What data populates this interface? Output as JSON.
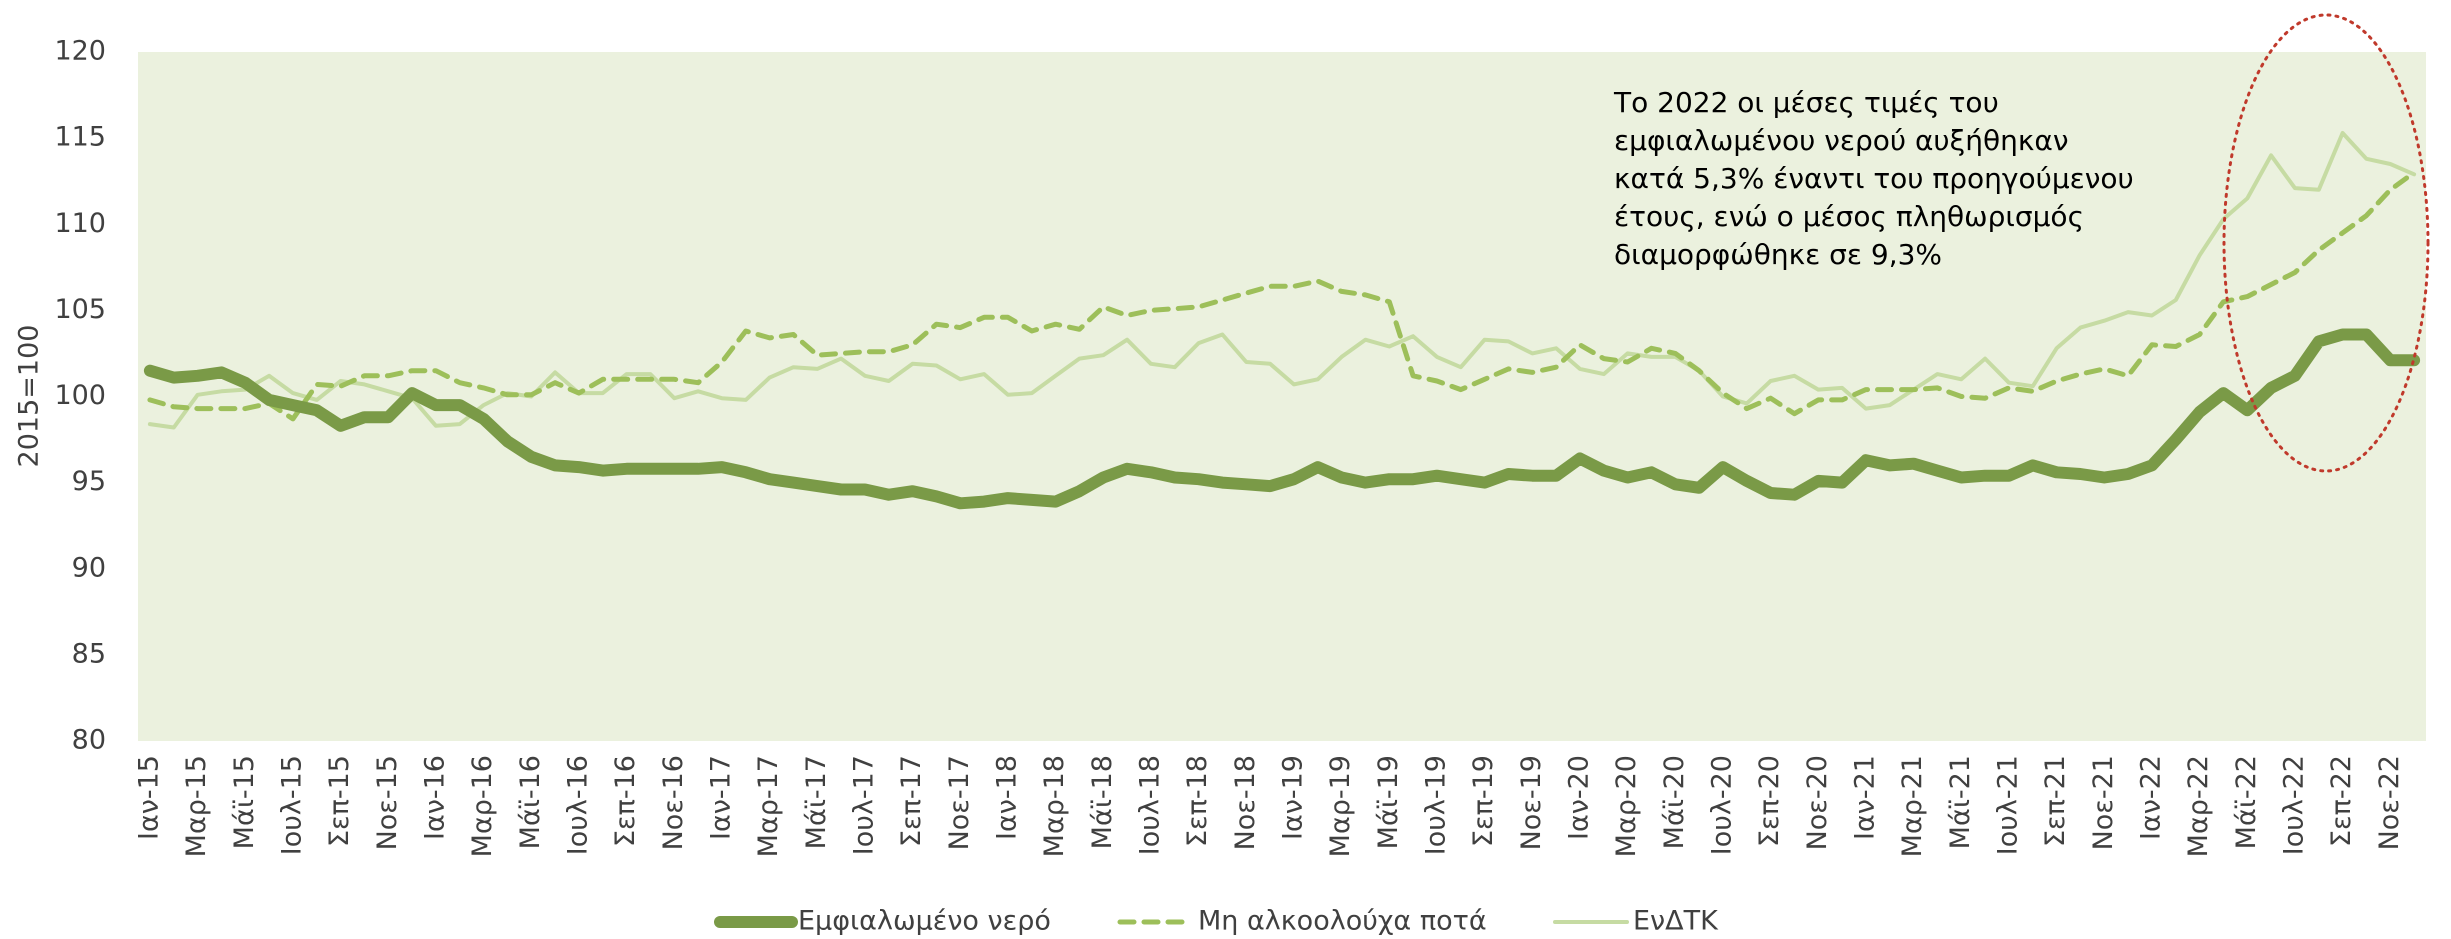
{
  "chart_data": {
    "type": "line",
    "ylabel": "2015=100",
    "categories": [
      "Ιαν-15",
      null,
      "Μαρ-15",
      null,
      "Μάϊ-15",
      null,
      "Ιουλ-15",
      null,
      "Σεπ-15",
      null,
      "Νοε-15",
      null,
      "Ιαν-16",
      null,
      "Μαρ-16",
      null,
      "Μάϊ-16",
      null,
      "Ιουλ-16",
      null,
      "Σεπ-16",
      null,
      "Νοε-16",
      null,
      "Ιαν-17",
      null,
      "Μαρ-17",
      null,
      "Μάϊ-17",
      null,
      "Ιουλ-17",
      null,
      "Σεπ-17",
      null,
      "Νοε-17",
      null,
      "Ιαν-18",
      null,
      "Μαρ-18",
      null,
      "Μάϊ-18",
      null,
      "Ιουλ-18",
      null,
      "Σεπ-18",
      null,
      "Νοε-18",
      null,
      "Ιαν-19",
      null,
      "Μαρ-19",
      null,
      "Μάϊ-19",
      null,
      "Ιουλ-19",
      null,
      "Σεπ-19",
      null,
      "Νοε-19",
      null,
      "Ιαν-20",
      null,
      "Μαρ-20",
      null,
      "Μάϊ-20",
      null,
      "Ιουλ-20",
      null,
      "Σεπ-20",
      null,
      "Νοε-20",
      null,
      "Ιαν-21",
      null,
      "Μαρ-21",
      null,
      "Μάϊ-21",
      null,
      "Ιουλ-21",
      null,
      "Σεπ-21",
      null,
      "Νοε-21",
      null,
      "Ιαν-22",
      null,
      "Μαρ-22",
      null,
      "Μάϊ-22",
      null,
      "Ιουλ-22",
      null,
      "Σεπ-22",
      null,
      "Νοε-22",
      null
    ],
    "series": [
      {
        "name": "Εμφιαλωμένο νερό",
        "color": "#7a9a47",
        "linestyle": "solid",
        "values": [
          101.5,
          101.1,
          101.2,
          101.4,
          100.8,
          99.8,
          99.5,
          99.2,
          98.3,
          98.8,
          98.8,
          100.2,
          99.5,
          99.5,
          98.7,
          97.4,
          96.5,
          96.0,
          95.9,
          95.7,
          95.8,
          95.8,
          95.8,
          95.8,
          95.9,
          95.6,
          95.2,
          95.0,
          94.8,
          94.6,
          94.6,
          94.3,
          94.5,
          94.2,
          93.8,
          93.9,
          94.1,
          94.0,
          93.9,
          94.5,
          95.3,
          95.8,
          95.6,
          95.3,
          95.2,
          95.0,
          94.9,
          94.8,
          95.2,
          95.9,
          95.3,
          95.0,
          95.2,
          95.2,
          95.4,
          95.2,
          95.0,
          95.5,
          95.4,
          95.4,
          96.4,
          95.7,
          95.3,
          95.6,
          94.9,
          94.7,
          95.9,
          95.1,
          94.4,
          94.3,
          95.1,
          95.0,
          96.3,
          96.0,
          96.1,
          95.7,
          95.3,
          95.4,
          95.4,
          96.0,
          95.6,
          95.5,
          95.3,
          95.5,
          96.0,
          97.5,
          99.1,
          100.2,
          99.2,
          100.5,
          101.2,
          103.2,
          103.6,
          103.6,
          102.1,
          102.1
        ]
      },
      {
        "name": "Μη αλκοολούχα ποτά",
        "color": "#9dbf5a",
        "linestyle": "dashed",
        "values": [
          99.8,
          99.4,
          99.3,
          99.3,
          99.3,
          99.6,
          98.7,
          100.7,
          100.6,
          101.2,
          101.2,
          101.5,
          101.5,
          100.8,
          100.5,
          100.1,
          100.1,
          100.8,
          100.2,
          101.0,
          101.0,
          101.0,
          101.0,
          100.8,
          102.0,
          103.8,
          103.4,
          103.6,
          102.4,
          102.5,
          102.6,
          102.6,
          103.0,
          104.2,
          104.0,
          104.6,
          104.6,
          103.8,
          104.2,
          103.9,
          105.2,
          104.7,
          105.0,
          105.1,
          105.2,
          105.6,
          106.0,
          106.4,
          106.4,
          106.7,
          106.1,
          105.9,
          105.5,
          101.2,
          100.9,
          100.4,
          101.0,
          101.6,
          101.4,
          101.7,
          103.0,
          102.2,
          102.0,
          102.8,
          102.5,
          101.5,
          100.2,
          99.3,
          99.9,
          99.0,
          99.8,
          99.8,
          100.4,
          100.4,
          100.4,
          100.5,
          100.0,
          99.9,
          100.5,
          100.3,
          100.9,
          101.3,
          101.6,
          101.2,
          103.0,
          102.9,
          103.6,
          105.5,
          105.8,
          106.5,
          107.2,
          108.5,
          109.5,
          110.5,
          112.0,
          113.0
        ]
      },
      {
        "name": "ΕνΔΤΚ",
        "color": "#c6dba3",
        "linestyle": "solid",
        "values": [
          98.4,
          98.2,
          100.1,
          100.3,
          100.4,
          101.2,
          100.2,
          99.8,
          100.9,
          100.7,
          100.3,
          99.9,
          98.3,
          98.4,
          99.5,
          100.2,
          100.0,
          101.4,
          100.2,
          100.2,
          101.3,
          101.3,
          99.9,
          100.3,
          99.9,
          99.8,
          101.1,
          101.7,
          101.6,
          102.2,
          101.2,
          100.9,
          101.9,
          101.8,
          101.0,
          101.3,
          100.1,
          100.2,
          101.2,
          102.2,
          102.4,
          103.3,
          101.9,
          101.7,
          103.1,
          103.6,
          102.0,
          101.9,
          100.7,
          101.0,
          102.3,
          103.3,
          102.9,
          103.5,
          102.3,
          101.7,
          103.3,
          103.2,
          102.5,
          102.8,
          101.6,
          101.3,
          102.5,
          102.3,
          102.3,
          101.5,
          100.0,
          99.6,
          100.9,
          101.2,
          100.4,
          100.5,
          99.3,
          99.5,
          100.4,
          101.3,
          101.0,
          102.2,
          100.8,
          100.6,
          102.8,
          104.0,
          104.4,
          104.9,
          104.7,
          105.6,
          108.2,
          110.3,
          111.5,
          114.0,
          112.1,
          112.0,
          115.3,
          113.8,
          113.5,
          112.9
        ]
      }
    ],
    "ylim": [
      80,
      120
    ],
    "yticks": [
      80,
      85,
      90,
      95,
      100,
      105,
      110,
      115,
      120
    ],
    "grid": false,
    "legend": "bottom",
    "annotation": [
      "Το 2022 οι μέσες τιμές του",
      "εμφιαλωμένου νερού αυξήθηκαν",
      "κατά 5,3% έναντι του προηγούμενου",
      "έτους, ενώ ο μέσος πληθωρισμός",
      "διαμορφώθηκε σε 9,3%"
    ]
  }
}
